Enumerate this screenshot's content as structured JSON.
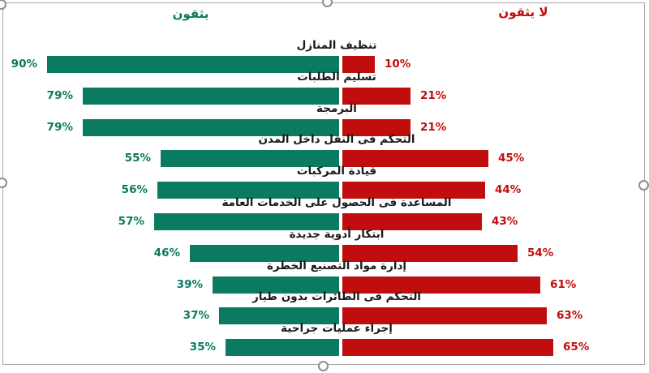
{
  "window": {
    "background": "#ffffff",
    "border_color": "#a8a8a8"
  },
  "header": {
    "trust_label": "يثقون",
    "distrust_label": "لا يثقون",
    "trust_color": "#0a7a60",
    "distrust_color": "#c00d0d"
  },
  "colors": {
    "trust_bar": "#0a7a60",
    "distrust_bar": "#c00d0d",
    "category_text": "#1a1a1a"
  },
  "icons": {
    "resize_handles": [
      "top-left",
      "top-center",
      "left-middle",
      "right-middle",
      "bottom-center"
    ]
  },
  "chart_data": {
    "type": "bar",
    "subtype": "diverging-horizontal",
    "direction": "rtl",
    "legend": {
      "left": "يثقون",
      "right": "لا يثقون",
      "position": "top"
    },
    "categories": [
      "تنظيف المنازل",
      "تسليم الطلبات",
      "البرمجة",
      "التحكم فى النقل داخل المدن",
      "قيادة المركبات",
      "المساعدة فى الحصول على الخدمات العامة",
      "ابتكار أدوية جديدة",
      "إدارة مواد التصنيع الخطرة",
      "التحكم فى الطائرات بدون طيار",
      "إجراء عمليات جراحية"
    ],
    "series": [
      {
        "name": "يثقون",
        "side": "left",
        "color": "#0a7a60",
        "values": [
          90,
          79,
          79,
          55,
          56,
          57,
          46,
          39,
          37,
          35
        ]
      },
      {
        "name": "لا يثقون",
        "side": "right",
        "color": "#c00d0d",
        "values": [
          10,
          21,
          21,
          45,
          44,
          43,
          54,
          61,
          63,
          65
        ]
      }
    ],
    "value_suffix": "%",
    "xlim": [
      0,
      100
    ],
    "grid": false
  }
}
